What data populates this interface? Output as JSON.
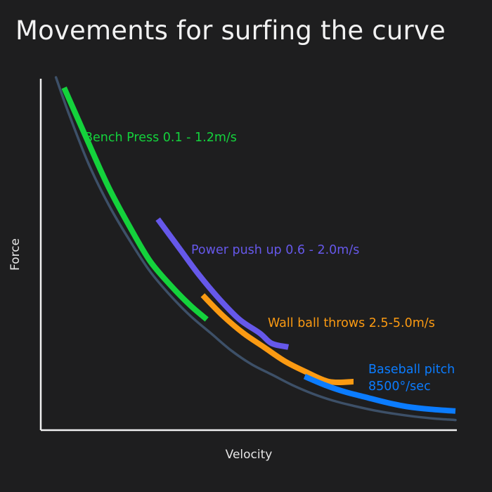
{
  "title": "Movements for surfing the curve",
  "chart_data": {
    "type": "line",
    "title": "Movements for surfing the curve",
    "xlabel": "Velocity",
    "ylabel": "Force",
    "grid": false,
    "axis_ticks": false,
    "base_curve": {
      "description_free": true,
      "color": "#3d5068",
      "points": [
        [
          0.02,
          1.0
        ],
        [
          0.05,
          0.9
        ],
        [
          0.1,
          0.75
        ],
        [
          0.15,
          0.63
        ],
        [
          0.2,
          0.53
        ],
        [
          0.25,
          0.44
        ],
        [
          0.3,
          0.37
        ],
        [
          0.35,
          0.31
        ],
        [
          0.4,
          0.26
        ],
        [
          0.45,
          0.21
        ],
        [
          0.5,
          0.17
        ],
        [
          0.55,
          0.14
        ],
        [
          0.6,
          0.11
        ],
        [
          0.65,
          0.085
        ],
        [
          0.7,
          0.065
        ],
        [
          0.75,
          0.05
        ],
        [
          0.8,
          0.037
        ],
        [
          0.85,
          0.027
        ],
        [
          0.9,
          0.019
        ],
        [
          0.95,
          0.013
        ],
        [
          1.0,
          0.009
        ]
      ]
    },
    "series": [
      {
        "name": "Bench Press 0.1 - 1.2m/s",
        "color": "#14d23c",
        "points": [
          [
            0.04,
            0.97
          ],
          [
            0.1,
            0.81
          ],
          [
            0.15,
            0.68
          ],
          [
            0.2,
            0.57
          ],
          [
            0.25,
            0.47
          ],
          [
            0.3,
            0.4
          ],
          [
            0.35,
            0.34
          ],
          [
            0.39,
            0.3
          ]
        ]
      },
      {
        "name": "Power push up 0.6 - 2.0m/s",
        "color": "#6658ea",
        "points": [
          [
            0.27,
            0.59
          ],
          [
            0.32,
            0.51
          ],
          [
            0.37,
            0.43
          ],
          [
            0.42,
            0.36
          ],
          [
            0.47,
            0.3
          ],
          [
            0.52,
            0.26
          ],
          [
            0.55,
            0.23
          ],
          [
            0.59,
            0.22
          ]
        ]
      },
      {
        "name": "Wall ball throws 2.5-5.0m/s",
        "color": "#fb9a12",
        "points": [
          [
            0.38,
            0.37
          ],
          [
            0.43,
            0.31
          ],
          [
            0.48,
            0.26
          ],
          [
            0.53,
            0.22
          ],
          [
            0.58,
            0.18
          ],
          [
            0.63,
            0.15
          ],
          [
            0.69,
            0.12
          ],
          [
            0.75,
            0.12
          ]
        ]
      },
      {
        "name": "Baseball pitch 8500°/sec",
        "color": "#0b7cff",
        "points": [
          [
            0.63,
            0.135
          ],
          [
            0.68,
            0.11
          ],
          [
            0.73,
            0.09
          ],
          [
            0.78,
            0.075
          ],
          [
            0.83,
            0.06
          ],
          [
            0.88,
            0.048
          ],
          [
            0.94,
            0.04
          ],
          [
            1.0,
            0.035
          ]
        ]
      }
    ],
    "labels": [
      {
        "lines": [
          "Bench Press 0.1 - 1.2m/s"
        ],
        "color": "#14d23c"
      },
      {
        "lines": [
          "Power push up 0.6 - 2.0m/s"
        ],
        "color": "#6658ea"
      },
      {
        "lines": [
          "Wall ball throws 2.5-5.0m/s"
        ],
        "color": "#fb9a12"
      },
      {
        "lines": [
          "Baseball pitch",
          "8500°/sec"
        ],
        "color": "#0b7cff"
      }
    ]
  },
  "colors": {
    "background": "#1e1e1f",
    "axis": "#f0f0f0",
    "title": "#f2f2f2",
    "base_curve": "#3d5068"
  }
}
